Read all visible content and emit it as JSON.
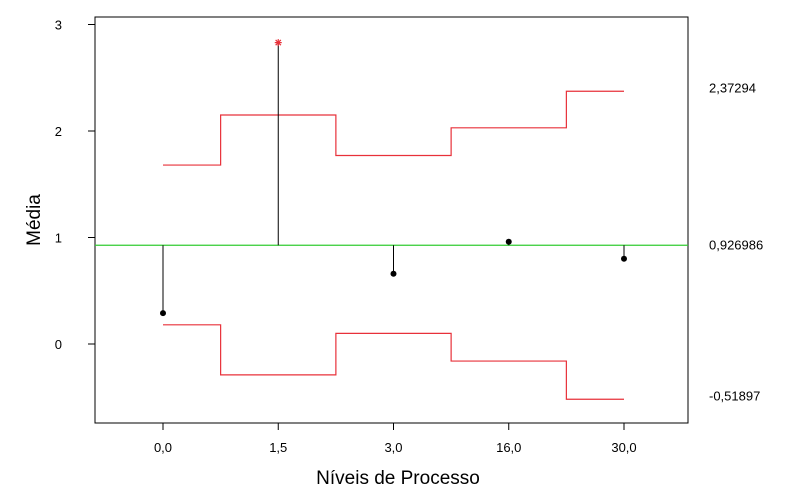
{
  "chart_data": {
    "type": "line",
    "title": "",
    "xlabel": "Níveis de Processo",
    "ylabel": "Média",
    "categories": [
      "0,0",
      "1,5",
      "3,0",
      "16,0",
      "30,0"
    ],
    "ylim": [
      -0.8,
      3.1
    ],
    "yticks": [
      0,
      1,
      2,
      3
    ],
    "yticklabels": [
      "0",
      "1",
      "2",
      "3"
    ],
    "center_line": {
      "value": 0.926986,
      "label": "0,926986",
      "color": "#33cc33"
    },
    "means": [
      {
        "category": "0,0",
        "value": 0.29,
        "out_of_control": false
      },
      {
        "category": "1,5",
        "value": 2.83,
        "out_of_control": true
      },
      {
        "category": "3,0",
        "value": 0.66,
        "out_of_control": false
      },
      {
        "category": "16,0",
        "value": 0.96,
        "out_of_control": false
      },
      {
        "category": "30,0",
        "value": 0.8,
        "out_of_control": false
      }
    ],
    "upper_limits": [
      1.68,
      2.15,
      1.77,
      2.03,
      2.37294
    ],
    "lower_limits": [
      0.18,
      -0.29,
      0.1,
      -0.16,
      -0.51897
    ],
    "upper_limit_label": "2,37294",
    "lower_limit_label": "-0,51897",
    "limit_color": "#e8313a",
    "point_color": "#000000",
    "out_of_control_color": "#e8313a",
    "grid": false,
    "legend": "none"
  }
}
